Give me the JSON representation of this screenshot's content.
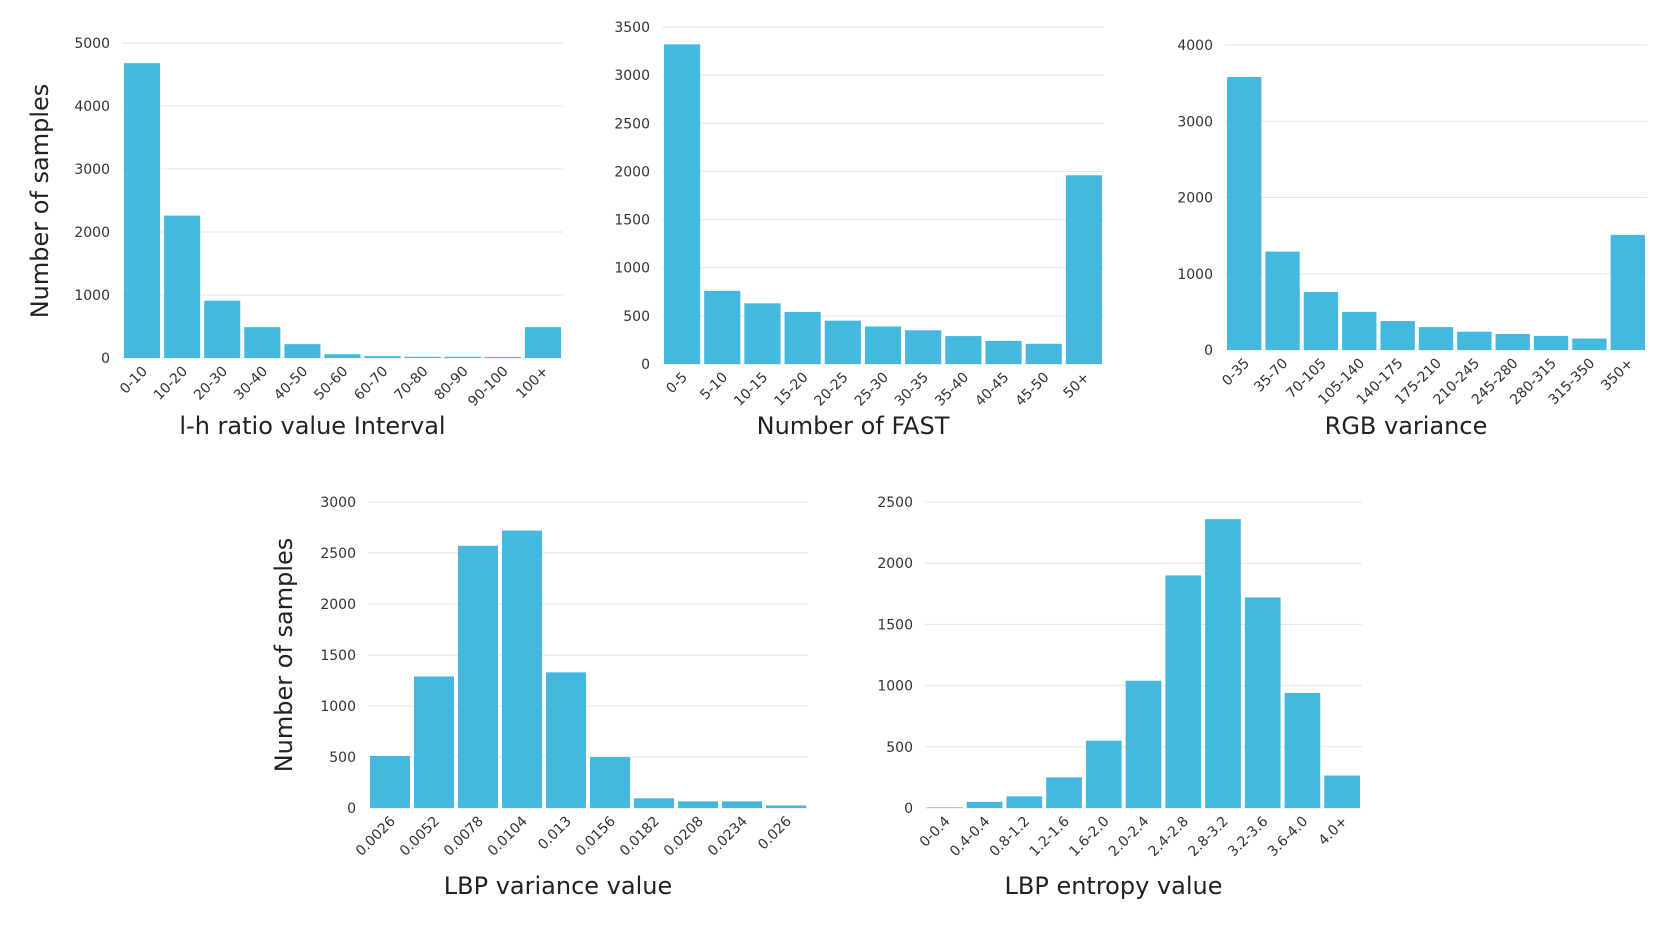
{
  "colors": {
    "bar": "#45b8e0",
    "grid": "#e6e6e6",
    "text": "#333333"
  },
  "chart_data": [
    {
      "type": "bar",
      "title": "",
      "xlabel": "l-h ratio value Interval",
      "ylabel": "Number of samples",
      "ylim": [
        0,
        5000
      ],
      "yticks": [
        0,
        1000,
        2000,
        3000,
        4000,
        5000
      ],
      "categories": [
        "0-10",
        "10-20",
        "20-30",
        "30-40",
        "40-50",
        "50-60",
        "60-70",
        "70-80",
        "80-90",
        "90-100",
        "100+"
      ],
      "values": [
        4680,
        2260,
        910,
        490,
        220,
        60,
        30,
        20,
        20,
        15,
        490
      ]
    },
    {
      "type": "bar",
      "title": "",
      "xlabel": "Number of FAST",
      "ylabel": "",
      "ylim": [
        0,
        3500
      ],
      "yticks": [
        0,
        500,
        1000,
        1500,
        2000,
        2500,
        3000,
        3500
      ],
      "categories": [
        "0-5",
        "5-10",
        "10-15",
        "15-20",
        "20-25",
        "25-30",
        "30-35",
        "35-40",
        "40-45",
        "45-50",
        "50+"
      ],
      "values": [
        3320,
        760,
        630,
        540,
        450,
        390,
        350,
        290,
        240,
        210,
        1960
      ]
    },
    {
      "type": "bar",
      "title": "",
      "xlabel": "RGB variance",
      "ylabel": "",
      "ylim": [
        0,
        4000
      ],
      "yticks": [
        0,
        1000,
        2000,
        3000,
        4000
      ],
      "categories": [
        "0-35",
        "35-70",
        "70-105",
        "105-140",
        "140-175",
        "175-210",
        "210-245",
        "245-280",
        "280-315",
        "315-350",
        "350+"
      ],
      "values": [
        3580,
        1290,
        760,
        500,
        380,
        300,
        240,
        210,
        185,
        150,
        1510
      ]
    },
    {
      "type": "bar",
      "title": "",
      "xlabel": "LBP variance value",
      "ylabel": "Number of samples",
      "ylim": [
        0,
        3000
      ],
      "yticks": [
        0,
        500,
        1000,
        1500,
        2000,
        2500,
        3000
      ],
      "categories": [
        "0.0026",
        "0.0052",
        "0.0078",
        "0.0104",
        "0.013",
        "0.0156",
        "0.0182",
        "0.0208",
        "0.0234",
        "0.026"
      ],
      "values": [
        510,
        1290,
        2570,
        2720,
        1330,
        500,
        95,
        65,
        65,
        25
      ]
    },
    {
      "type": "bar",
      "title": "",
      "xlabel": "LBP entropy value",
      "ylabel": "",
      "ylim": [
        0,
        2500
      ],
      "yticks": [
        0,
        500,
        1000,
        1500,
        2000,
        2500
      ],
      "categories": [
        "0-0.4",
        "0.4-0.4",
        "0.8-1.2",
        "1.2-1.6",
        "1.6-2.0",
        "2.0-2.4",
        "2.4-2.8",
        "2.8-3.2",
        "3.2-3.6",
        "3.6-4.0",
        "4.0+"
      ],
      "values": [
        5,
        50,
        95,
        250,
        550,
        1040,
        1900,
        2360,
        1720,
        940,
        265
      ]
    }
  ]
}
